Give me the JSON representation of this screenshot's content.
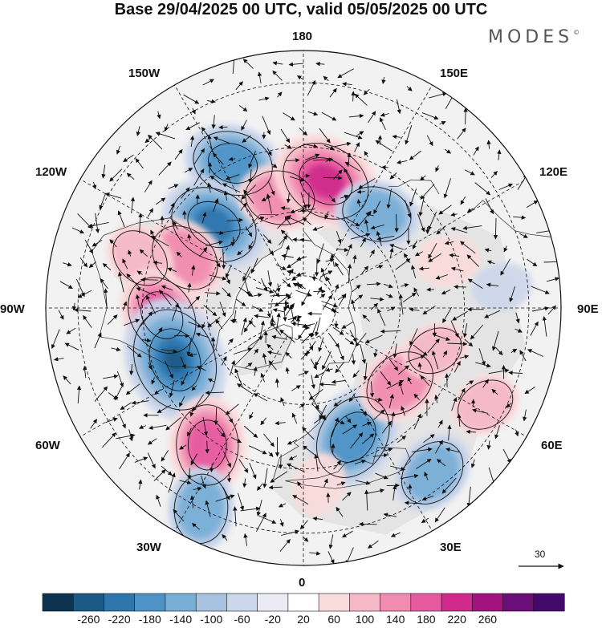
{
  "title": "Base 29/04/2025 00 UTC, valid 05/05/2025 00 UTC",
  "brand": "MODES",
  "brand_mark": "©",
  "longitude_labels": {
    "lon_180": "180",
    "lon_150e": "150E",
    "lon_120e": "120E",
    "lon_90e": "90E",
    "lon_60e": "60E",
    "lon_30e": "30E",
    "lon_0": "0",
    "lon_30w": "30W",
    "lon_60w": "60W",
    "lon_90w": "90W",
    "lon_120w": "120W",
    "lon_150w": "150W"
  },
  "reference_vector": {
    "value": "30"
  },
  "colorbar": {
    "ticks": [
      "-260",
      "-220",
      "-180",
      "-140",
      "-100",
      "-60",
      "-20",
      "20",
      "60",
      "100",
      "140",
      "180",
      "220",
      "260"
    ],
    "colors": [
      "#0d3350",
      "#1b5a85",
      "#2f76ad",
      "#4f93c6",
      "#79aed6",
      "#a8c3e0",
      "#cdd7eb",
      "#ebebf5",
      "#ffffff",
      "#fadcdc",
      "#f5b8c6",
      "#f18cb0",
      "#e75aa0",
      "#cf2a8c",
      "#a3137f",
      "#6a0f78",
      "#430a6b"
    ]
  },
  "anomaly_centers": [
    {
      "lon": -154,
      "lat": 40,
      "value": -150
    },
    {
      "lon": -133,
      "lat": 52,
      "value": -180
    },
    {
      "lon": -168,
      "lat": 55,
      "value": 110
    },
    {
      "lon": 170,
      "lat": 50,
      "value": 185
    },
    {
      "lon": 142,
      "lat": 53,
      "value": -110
    },
    {
      "lon": -113,
      "lat": 50,
      "value": 120
    },
    {
      "lon": -107,
      "lat": 37,
      "value": 80
    },
    {
      "lon": -87,
      "lat": 46,
      "value": 150
    },
    {
      "lon": -68,
      "lat": 47,
      "value": -230
    },
    {
      "lon": -35,
      "lat": 38,
      "value": 150
    },
    {
      "lon": -27,
      "lat": 20,
      "value": -110
    },
    {
      "lon": 21,
      "lat": 47,
      "value": -170
    },
    {
      "lon": 52,
      "lat": 52,
      "value": 120
    },
    {
      "lon": 38,
      "lat": 25,
      "value": -110
    },
    {
      "lon": 62,
      "lat": 26,
      "value": 70
    },
    {
      "lon": 108,
      "lat": 43,
      "value": 50
    },
    {
      "lon": 96,
      "lat": 28,
      "value": -40
    },
    {
      "lon": 72,
      "lat": 47,
      "value": 60
    },
    {
      "lon": 5,
      "lat": 35,
      "value": 50
    }
  ]
}
